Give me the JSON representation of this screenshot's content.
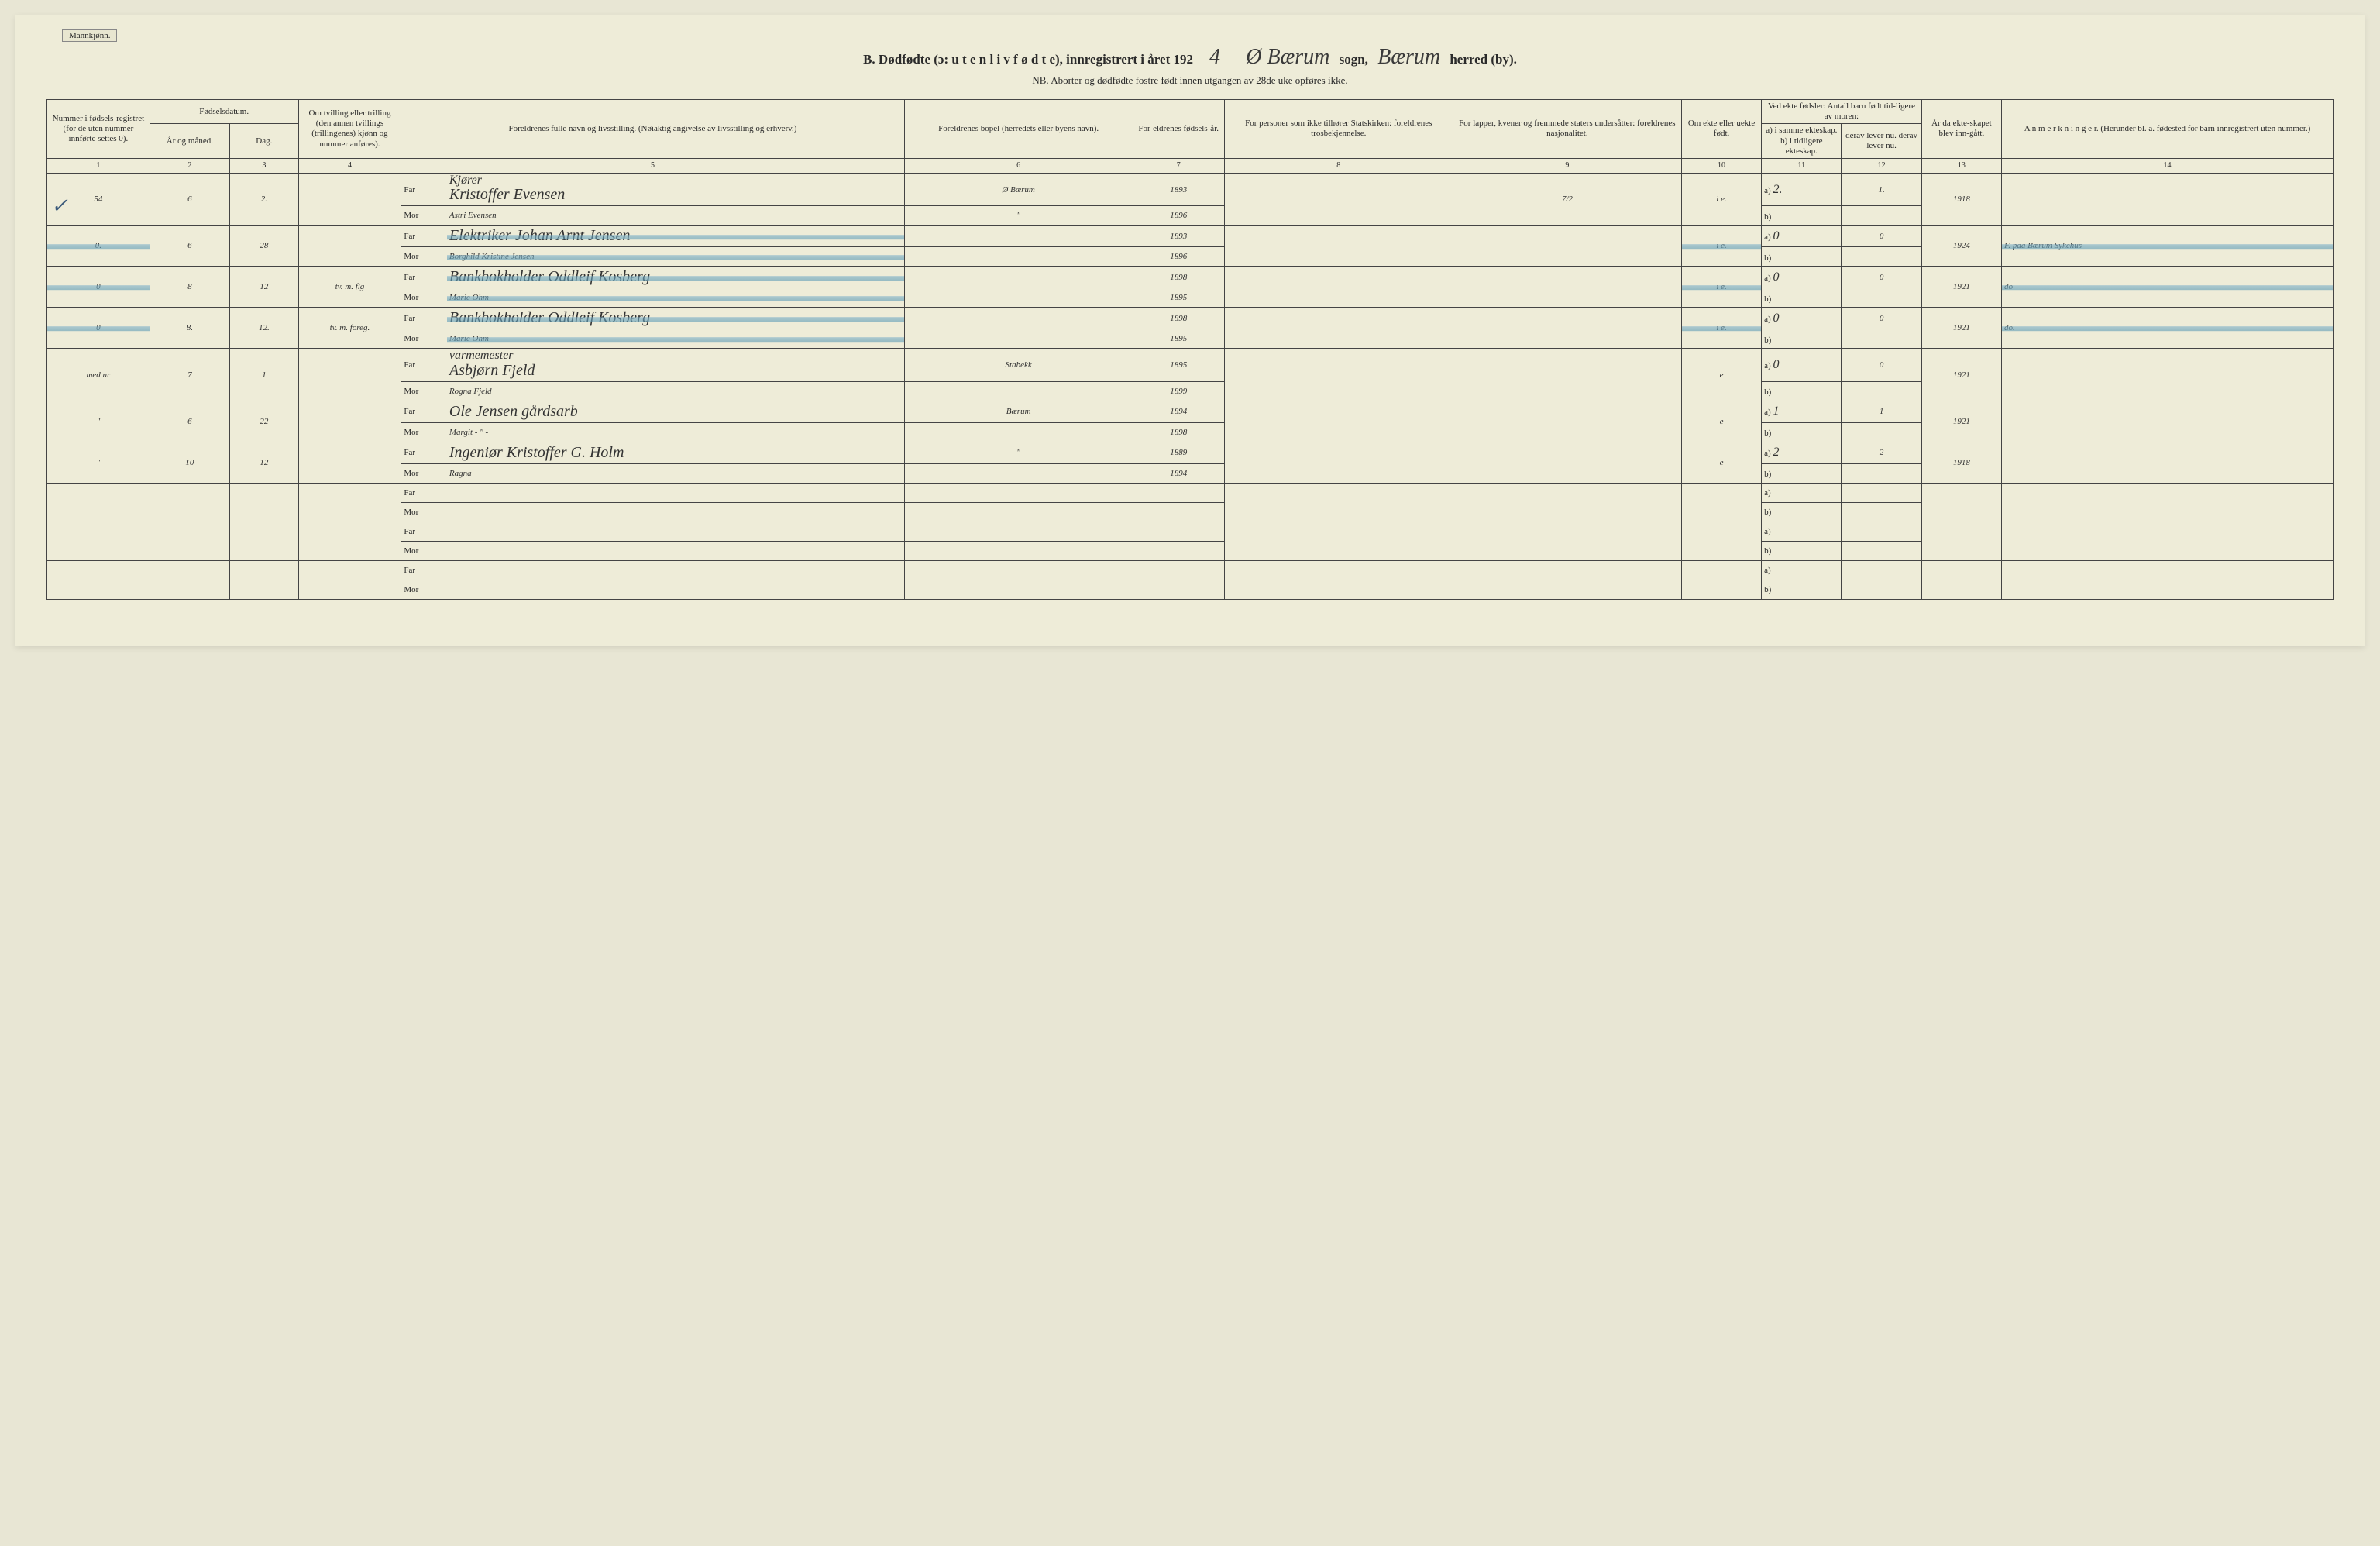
{
  "gender_tag": "Mannkjønn.",
  "header": {
    "prefix": "B.   Dødfødte (ɔ:  u t e n   l i v   f ø d t e),  innregistrert i året 192",
    "year_digit": "4",
    "parish_label": "sogn,",
    "parish": "Ø Bærum",
    "district": "Bærum",
    "suffix": "herred (by)."
  },
  "subhead": "NB.  Aborter og dødfødte fostre født innen utgangen av 28de uke opføres ikke.",
  "columns": {
    "c1": "Nummer i fødsels-registret (for de uten nummer innførte settes 0).",
    "c2_group": "Fødselsdatum.",
    "c2": "År og måned.",
    "c3": "Dag.",
    "c4": "Om tvilling eller trilling (den annen tvillings (trillingenes) kjønn og nummer anføres).",
    "c5": "Foreldrenes fulle navn og livsstilling.\n(Nøiaktig angivelse av livsstilling og erhverv.)",
    "c6": "Foreldrenes bopel\n(herredets eller byens navn).",
    "c7": "For-eldrenes fødsels-år.",
    "c8": "For personer som ikke tilhører Statskirken:\nforeldrenes trosbekjennelse.",
    "c9": "For lapper, kvener og fremmede staters undersåtter:\nforeldrenes nasjonalitet.",
    "c10": "Om ekte eller uekte født.",
    "c11_group": "Ved ekte fødsler:\nAntall barn født tid-ligere av moren:",
    "c11": "a) i samme ekteskap.\nb) i tidligere ekteskap.",
    "c12": "derav lever nu.\nderav lever nu.",
    "c13": "År da ekte-skapet blev inn-gått.",
    "c14": "A n m e r k n i n g e r.\n(Herunder bl. a. fødested for barn innregistrert uten nummer.)"
  },
  "colnums": [
    "1",
    "2",
    "3",
    "4",
    "5",
    "6",
    "7",
    "8",
    "9",
    "10",
    "11",
    "12",
    "13",
    "14"
  ],
  "far": "Far",
  "mor": "Mor",
  "ab_a": "a)",
  "ab_b": "b)",
  "rows": [
    {
      "num": "54",
      "check": "✓",
      "mon": "6",
      "day": "2.",
      "twin": "",
      "occ": "Kjører",
      "far": "Kristoffer Evensen",
      "mor": "Astri Evensen",
      "bopel_f": "Ø Bærum",
      "bopel_m": "\"",
      "yr_f": "1893",
      "yr_m": "1896",
      "c8": "",
      "c9": "7/2",
      "c10": "i e.",
      "a": "2.",
      "a2": "1.",
      "b": "",
      "yr13": "1918",
      "note": ""
    },
    {
      "num": "0.",
      "mon": "6",
      "day": "28",
      "twin": "",
      "occ": "",
      "far": "Elektriker Johan Arnt Jensen",
      "mor": "Borghild Kristine Jensen",
      "bopel_f": "",
      "bopel_m": "",
      "yr_f": "1893",
      "yr_m": "1896",
      "c8": "",
      "c9": "",
      "c10": "i e.",
      "a": "0",
      "a2": "0",
      "b": "",
      "yr13": "1924",
      "note": "F. paa Bærum Sykehus",
      "strike": true
    },
    {
      "num": "0",
      "mon": "8",
      "day": "12",
      "twin": "tv. m. flg",
      "occ": "",
      "far": "Bankbokholder Oddleif Kosberg",
      "mor": "Marie Ohm",
      "bopel_f": "",
      "bopel_m": "",
      "yr_f": "1898",
      "yr_m": "1895",
      "c8": "",
      "c9": "",
      "c10": "i e.",
      "a": "0",
      "a2": "0",
      "b": "",
      "yr13": "1921",
      "note": "do",
      "strike": true
    },
    {
      "num": "0",
      "mon": "8.",
      "day": "12.",
      "twin": "tv. m. foreg.",
      "occ": "",
      "far": "Bankbokholder Oddleif Kosberg",
      "mor": "Marie Ohm",
      "bopel_f": "",
      "bopel_m": "",
      "yr_f": "1898",
      "yr_m": "1895",
      "c8": "",
      "c9": "",
      "c10": "i e.",
      "a": "0",
      "a2": "0",
      "b": "",
      "yr13": "1921",
      "note": "do.",
      "strike": true
    },
    {
      "num": "med nr",
      "mon": "7",
      "day": "1",
      "twin": "",
      "occ": "varmemester",
      "far": "Asbjørn Fjeld",
      "mor": "Rogna Fjeld",
      "bopel_f": "Stabekk",
      "bopel_m": "",
      "yr_f": "1895",
      "yr_m": "1899",
      "c8": "",
      "c9": "",
      "c10": "e",
      "a": "0",
      "a2": "0",
      "b": "",
      "yr13": "1921",
      "note": ""
    },
    {
      "num": "- \" -",
      "mon": "6",
      "day": "22",
      "twin": "",
      "occ": "",
      "far": "Ole Jensen   gårdsarb",
      "mor": "Margit  - \" -",
      "bopel_f": "Bærum",
      "bopel_m": "",
      "yr_f": "1894",
      "yr_m": "1898",
      "c8": "",
      "c9": "",
      "c10": "e",
      "a": "1",
      "a2": "1",
      "b": "",
      "yr13": "1921",
      "note": ""
    },
    {
      "num": "- \" -",
      "mon": "10",
      "day": "12",
      "twin": "",
      "occ": "",
      "far": "Ingeniør Kristoffer G. Holm",
      "mor": "Ragna",
      "bopel_f": "— \" —",
      "bopel_m": "",
      "yr_f": "1889",
      "yr_m": "1894",
      "c8": "",
      "c9": "",
      "c10": "e",
      "a": "2",
      "a2": "2",
      "b": "",
      "yr13": "1918",
      "note": ""
    },
    {
      "empty": true
    },
    {
      "empty": true
    },
    {
      "empty": true
    }
  ],
  "styling": {
    "page_bg": "#eeecd8",
    "body_bg": "#e8e6d4",
    "ink": "#2a2a2a",
    "strike_color": "#7db0c8",
    "header_fontsize_pt": 17,
    "subhead_fontsize_pt": 13,
    "cell_fontsize_pt": 11,
    "hand_fontsize_pt": 20
  }
}
